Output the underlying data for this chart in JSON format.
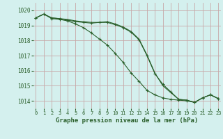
{
  "title": "Graphe pression niveau de la mer (hPa)",
  "background_color": "#d4f0ee",
  "grid_color": "#c8a8a8",
  "line_color": "#2a5f2a",
  "x_ticks": [
    0,
    1,
    2,
    3,
    4,
    5,
    6,
    7,
    8,
    9,
    10,
    11,
    12,
    13,
    14,
    15,
    16,
    17,
    18,
    19,
    20,
    21,
    22,
    23
  ],
  "y_ticks": [
    1014,
    1015,
    1016,
    1017,
    1018,
    1019,
    1020
  ],
  "ylim": [
    1013.5,
    1020.5
  ],
  "xlim": [
    -0.3,
    23.3
  ],
  "series1": [
    1019.5,
    1019.75,
    1019.5,
    1019.45,
    1019.35,
    1019.25,
    1019.2,
    1019.15,
    1019.2,
    1019.2,
    1019.05,
    1018.85,
    1018.55,
    1018.05,
    1017.0,
    1015.8,
    1015.1,
    1014.6,
    1014.1,
    1014.05,
    1013.9,
    1014.2,
    1014.4,
    1014.15
  ],
  "series2": [
    1019.5,
    1019.75,
    1019.5,
    1019.45,
    1019.4,
    1019.3,
    1019.25,
    1019.2,
    1019.2,
    1019.25,
    1019.1,
    1018.9,
    1018.6,
    1018.1,
    1017.05,
    1015.85,
    1015.0,
    1014.55,
    1014.1,
    1014.05,
    1013.9,
    1014.2,
    1014.4,
    1014.15
  ],
  "series3": [
    1019.5,
    1019.75,
    1019.45,
    1019.4,
    1019.3,
    1019.1,
    1018.85,
    1018.5,
    1018.1,
    1017.7,
    1017.15,
    1016.55,
    1015.85,
    1015.3,
    1014.7,
    1014.4,
    1014.2,
    1014.1,
    1014.05,
    1014.0,
    1013.9,
    1014.2,
    1014.4,
    1014.15
  ],
  "tick_fontsize": 5.5,
  "xlabel_fontsize": 6.5
}
